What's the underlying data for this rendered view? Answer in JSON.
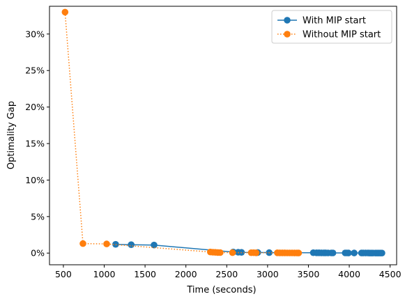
{
  "chart_data": {
    "type": "line",
    "title": "",
    "xlabel": "Time (seconds)",
    "ylabel": "Optimality Gap",
    "xlim": [
      330,
      4580
    ],
    "ylim": [
      -1.6,
      33.8
    ],
    "xticks": [
      500,
      1000,
      1500,
      2000,
      2500,
      3000,
      3500,
      4000,
      4500
    ],
    "yticks": [
      0,
      5,
      10,
      15,
      20,
      25,
      30
    ],
    "ytick_labels": [
      "0%",
      "5%",
      "10%",
      "15%",
      "20%",
      "25%",
      "30%"
    ],
    "grid": false,
    "legend_position": "top-right",
    "series": [
      {
        "name": "With MIP start",
        "color": "#1f77b4",
        "linestyle": "solid",
        "marker": "circle",
        "x": [
          1140,
          1330,
          1610,
          2580,
          2640,
          2680,
          2880,
          3020,
          3560,
          3600,
          3630,
          3660,
          3690,
          3710,
          3740,
          3780,
          3800,
          3950,
          3970,
          3990,
          4060,
          4150,
          4170,
          4200,
          4230,
          4250,
          4270,
          4290,
          4320,
          4340,
          4360,
          4380,
          4400
        ],
        "y": [
          1.2,
          1.15,
          1.1,
          0.15,
          0.12,
          0.1,
          0.08,
          0.06,
          0.05,
          0.04,
          0.04,
          0.03,
          0.03,
          0.03,
          0.02,
          0.02,
          0.02,
          0.02,
          0.02,
          0.01,
          0.01,
          0.01,
          0.01,
          0.01,
          0.01,
          0.0,
          0.0,
          0.0,
          0.0,
          0.0,
          0.0,
          0.0,
          0.0
        ]
      },
      {
        "name": "Without MIP start",
        "color": "#ff7f0e",
        "linestyle": "dotted",
        "marker": "circle",
        "x": [
          520,
          740,
          1030,
          2300,
          2330,
          2360,
          2390,
          2420,
          2570,
          2800,
          2830,
          2860,
          3120,
          3150,
          3180,
          3210,
          3240,
          3270,
          3300,
          3330,
          3360,
          3380
        ],
        "y": [
          33.0,
          1.3,
          1.25,
          0.15,
          0.12,
          0.1,
          0.08,
          0.07,
          0.06,
          0.05,
          0.05,
          0.04,
          0.04,
          0.03,
          0.03,
          0.03,
          0.02,
          0.02,
          0.02,
          0.01,
          0.01,
          0.01
        ]
      }
    ]
  }
}
